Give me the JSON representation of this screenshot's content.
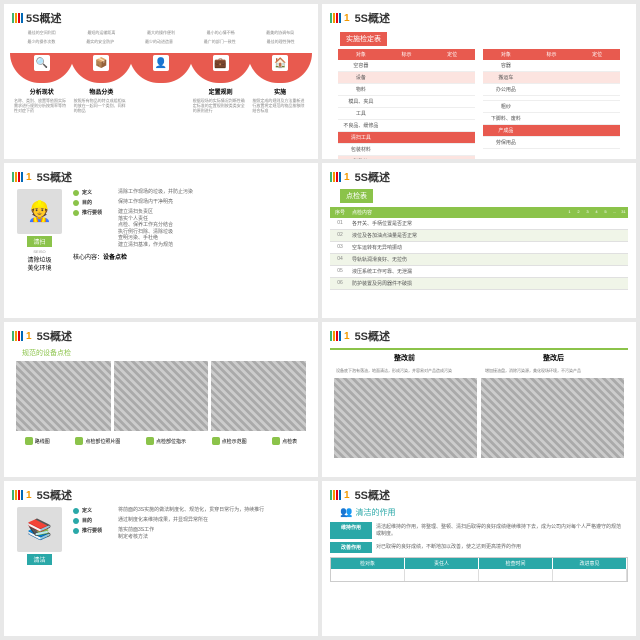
{
  "common": {
    "title": "5S概述",
    "num": "1"
  },
  "s1": {
    "top": [
      "最佳的空间利用",
      "最短的运输距离",
      "最大的操作便利",
      "最小的心情不畅",
      "最美的协调布局"
    ],
    "top2": [
      "最少的操作次数",
      "最实的安全防护",
      "最少的动进造意",
      "最广的部门一致性",
      "最佳的理性弹性"
    ],
    "steps": [
      "分析现状",
      "物品分类",
      "定置规则",
      "实施"
    ],
    "desc": [
      "名称、类别、放置等依照实际需求进行规则分析按频率等特性对症下药",
      "按照所有物品的特点成组相似的放在一起同一个类别、同样的物品",
      "根据现场的实际情况判断性确定标准的定置规则按类类安全的原则进行",
      "按照定成的规则及方法重新进行放置将定规范的物品按移除结合标准"
    ]
  },
  "s2": {
    "sub": "实施检定表",
    "hdr": [
      "对象",
      "标示",
      "定位"
    ],
    "t1": [
      [
        "空容器",
        "",
        ""
      ],
      [
        "设备",
        "",
        ""
      ],
      [
        "物料",
        "",
        ""
      ],
      [
        "模具、夹具",
        "",
        ""
      ],
      [
        "工具",
        "",
        ""
      ],
      [
        "不良品、缓修品",
        "",
        ""
      ],
      [
        "清扫工具",
        "",
        ""
      ],
      [
        "包装材料",
        "",
        ""
      ],
      [
        "张贴物",
        "",
        ""
      ]
    ],
    "t2": [
      [
        "容器",
        "",
        ""
      ],
      [
        "搬运车",
        "",
        ""
      ],
      [
        "办公用品",
        "",
        ""
      ],
      [
        "",
        "",
        ""
      ],
      [
        "粗纱",
        "",
        ""
      ],
      [
        "下脚料、废料",
        "",
        ""
      ],
      [
        "产成品",
        "",
        ""
      ],
      [
        "劳保用品",
        "",
        ""
      ]
    ]
  },
  "s3": {
    "tag": "清扫",
    "sub": "SEISO",
    "cap1": "清除垃圾",
    "cap2": "美化环境",
    "items": [
      [
        "定义",
        "清除工作现场的垃圾，并防止污染"
      ],
      [
        "目的",
        "保持工作现场内干净明亮"
      ],
      [
        "推行要领",
        "建立清扫负责区\n落实个人责任\n点检、保养工作充分结合\n执行例行扫除、清除垃圾\n查明污染、手杜绝\n建立清扫基准，作为规范"
      ]
    ],
    "core": "核心内容：",
    "coreVal": "设备点检"
  },
  "s4": {
    "sub": "点检表",
    "hdr": [
      "序号",
      "点检内容"
    ],
    "cols": [
      "1",
      "2",
      "3",
      "4",
      "5",
      "...",
      "31"
    ],
    "rows": [
      [
        "01",
        "各开关、手柄位置是否正常"
      ],
      [
        "02",
        "液位及各加油点油量是否正常"
      ],
      [
        "03",
        "空车运转有无异响振动"
      ],
      [
        "04",
        "导轨轨润滑良好、无拉伤"
      ],
      [
        "05",
        "液压系统工作可靠、无泄漏"
      ],
      [
        "06",
        "防护装置及另周器件不破损"
      ]
    ]
  },
  "s5": {
    "sub": "规范的设备点检",
    "icons": [
      "路线图",
      "点检部位照片图",
      "点检部位指示",
      "点检示范图",
      "点检表"
    ]
  },
  "s6": {
    "before": "整改前",
    "after": "整改后",
    "bdesc": "设备底下泡有落油，地面清洁，形成污染，并容易对产品造成污染",
    "adesc": "增加接油盘，消除污染源，美化现场环境，不污染产品"
  },
  "s7": {
    "tag": "清洁",
    "cap1": "",
    "cap2": "",
    "items": [
      [
        "定义",
        "将前面的3S实施的做法制度化、规范化，贯穿日常行为，持续推行"
      ],
      [
        "目的",
        "通过制度化来维持成果，并显现异常所在"
      ],
      [
        "推行要领",
        "落实前面3S工作\n制定考核方法"
      ]
    ]
  },
  "s8": {
    "title": "清洁的作用",
    "r1": [
      "维持作用",
      "清洁起维持的作用，将整理、整顿、清扫后取得的良好成绩继续维持下去，成为公司内对每个人严格遵守的规范或制度。"
    ],
    "r2": [
      "改善作用",
      "对已取得的良好成绩，不断地加以改善，使之达到更高境界的作用"
    ],
    "thdr": [
      "检对象",
      "责任人",
      "检查时间",
      "改进意见"
    ]
  }
}
